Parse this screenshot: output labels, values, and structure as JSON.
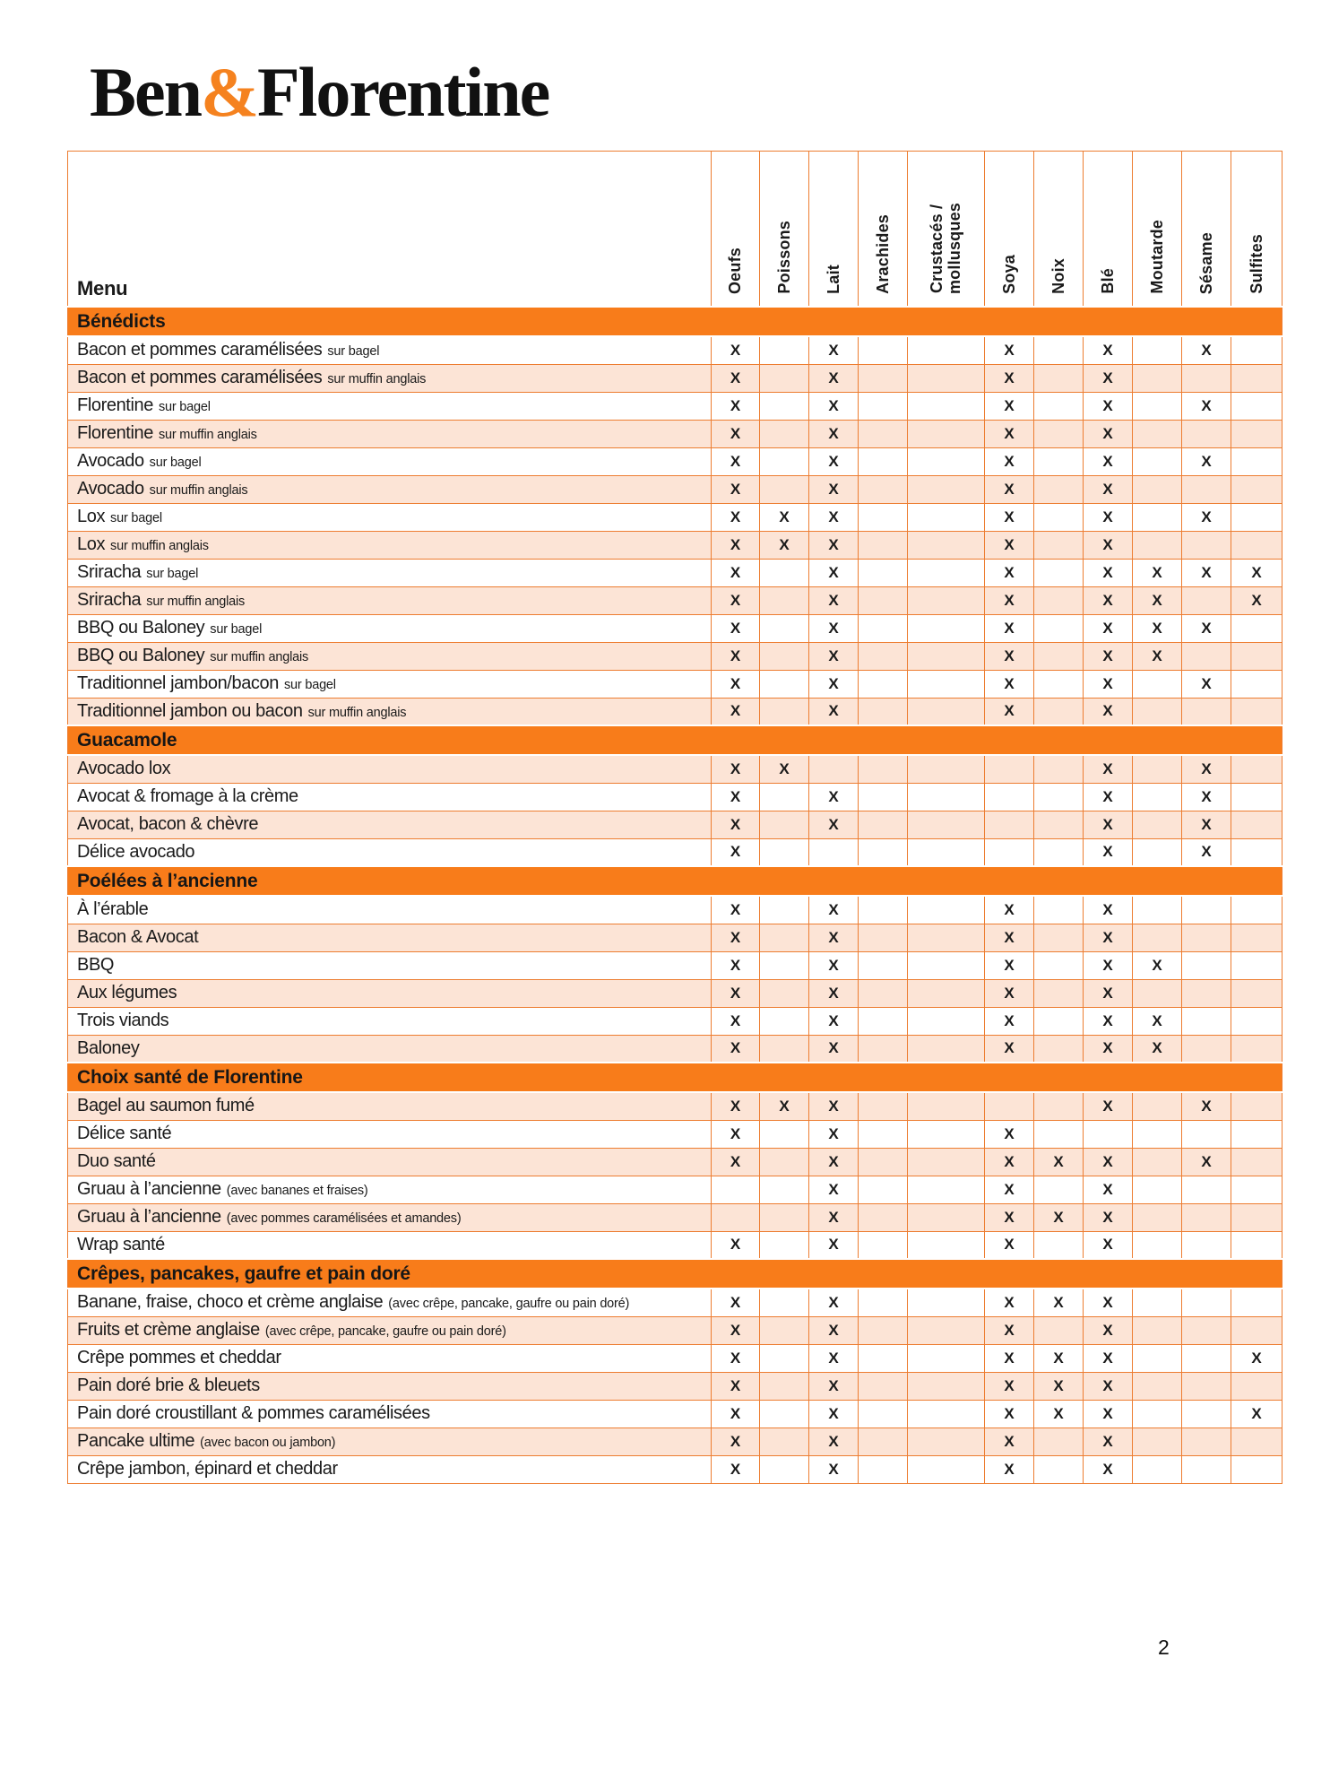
{
  "logo": {
    "part1": "Ben",
    "ampersand": "&",
    "part2": "Florentine"
  },
  "page_number": "2",
  "colors": {
    "section_bar_orange": "#f87c1a",
    "grid_line_orange": "#ed7d31",
    "row_shade_peach": "#fce4d6",
    "logo_ampersand_orange": "#f5821f",
    "text_black": "#1a1a1a"
  },
  "table": {
    "menu_header": "Menu",
    "columns": [
      "Oeufs",
      "Poissons",
      "Lait",
      "Arachides",
      "Crustacés /\nmollusques",
      "Soya",
      "Noix",
      "Blé",
      "Moutarde",
      "Sésame",
      "Sulfites"
    ],
    "mark": "X",
    "sections": [
      {
        "title": "Bénédicts",
        "rows": [
          {
            "name": "Bacon et pommes caramélisées",
            "note": "sur bagel",
            "allergens": [
              "Oeufs",
              "Lait",
              "Soya",
              "Blé",
              "Sésame"
            ]
          },
          {
            "name": "Bacon et pommes caramélisées",
            "note": "sur muffin anglais",
            "allergens": [
              "Oeufs",
              "Lait",
              "Soya",
              "Blé"
            ]
          },
          {
            "name": "Florentine",
            "note": "sur bagel",
            "allergens": [
              "Oeufs",
              "Lait",
              "Soya",
              "Blé",
              "Sésame"
            ]
          },
          {
            "name": "Florentine",
            "note": "sur muffin anglais",
            "allergens": [
              "Oeufs",
              "Lait",
              "Soya",
              "Blé"
            ]
          },
          {
            "name": "Avocado",
            "note": "sur bagel",
            "allergens": [
              "Oeufs",
              "Lait",
              "Soya",
              "Blé",
              "Sésame"
            ]
          },
          {
            "name": "Avocado",
            "note": "sur muffin anglais",
            "allergens": [
              "Oeufs",
              "Lait",
              "Soya",
              "Blé"
            ]
          },
          {
            "name": "Lox",
            "note": "sur bagel",
            "allergens": [
              "Oeufs",
              "Poissons",
              "Lait",
              "Soya",
              "Blé",
              "Sésame"
            ]
          },
          {
            "name": "Lox",
            "note": "sur muffin anglais",
            "allergens": [
              "Oeufs",
              "Poissons",
              "Lait",
              "Soya",
              "Blé"
            ]
          },
          {
            "name": "Sriracha",
            "note": "sur bagel",
            "allergens": [
              "Oeufs",
              "Lait",
              "Soya",
              "Blé",
              "Moutarde",
              "Sésame",
              "Sulfites"
            ]
          },
          {
            "name": "Sriracha",
            "note": "sur muffin anglais",
            "allergens": [
              "Oeufs",
              "Lait",
              "Soya",
              "Blé",
              "Moutarde",
              "Sulfites"
            ]
          },
          {
            "name": "BBQ ou Baloney",
            "note": "sur bagel",
            "allergens": [
              "Oeufs",
              "Lait",
              "Soya",
              "Blé",
              "Moutarde",
              "Sésame"
            ]
          },
          {
            "name": "BBQ ou Baloney",
            "note": "sur muffin anglais",
            "allergens": [
              "Oeufs",
              "Lait",
              "Soya",
              "Blé",
              "Moutarde"
            ]
          },
          {
            "name": "Traditionnel jambon/bacon",
            "note": "sur bagel",
            "allergens": [
              "Oeufs",
              "Lait",
              "Soya",
              "Blé",
              "Sésame"
            ]
          },
          {
            "name": "Traditionnel jambon ou bacon",
            "note": "sur muffin anglais",
            "allergens": [
              "Oeufs",
              "Lait",
              "Soya",
              "Blé"
            ]
          }
        ]
      },
      {
        "title": "Guacamole",
        "rows": [
          {
            "name": "Avocado lox",
            "note": "",
            "allergens": [
              "Oeufs",
              "Poissons",
              "Blé",
              "Sésame"
            ]
          },
          {
            "name": "Avocat & fromage à la crème",
            "note": "",
            "allergens": [
              "Oeufs",
              "Lait",
              "Blé",
              "Sésame"
            ]
          },
          {
            "name": "Avocat, bacon & chèvre",
            "note": "",
            "allergens": [
              "Oeufs",
              "Lait",
              "Blé",
              "Sésame"
            ]
          },
          {
            "name": "Délice avocado",
            "note": "",
            "allergens": [
              "Oeufs",
              "Blé",
              "Sésame"
            ]
          }
        ]
      },
      {
        "title": "Poélées à l’ancienne",
        "rows": [
          {
            "name": "À l’érable",
            "note": "",
            "allergens": [
              "Oeufs",
              "Lait",
              "Soya",
              "Blé"
            ]
          },
          {
            "name": "Bacon & Avocat",
            "note": "",
            "allergens": [
              "Oeufs",
              "Lait",
              "Soya",
              "Blé"
            ]
          },
          {
            "name": "BBQ",
            "note": "",
            "allergens": [
              "Oeufs",
              "Lait",
              "Soya",
              "Blé",
              "Moutarde"
            ]
          },
          {
            "name": "Aux légumes",
            "note": "",
            "allergens": [
              "Oeufs",
              "Lait",
              "Soya",
              "Blé"
            ]
          },
          {
            "name": "Trois viands",
            "note": "",
            "allergens": [
              "Oeufs",
              "Lait",
              "Soya",
              "Blé",
              "Moutarde"
            ]
          },
          {
            "name": "Baloney",
            "note": "",
            "allergens": [
              "Oeufs",
              "Lait",
              "Soya",
              "Blé",
              "Moutarde"
            ]
          }
        ]
      },
      {
        "title": "Choix santé de Florentine",
        "rows": [
          {
            "name": "Bagel au saumon fumé",
            "note": "",
            "allergens": [
              "Oeufs",
              "Poissons",
              "Lait",
              "Blé",
              "Sésame"
            ]
          },
          {
            "name": "Délice santé",
            "note": "",
            "allergens": [
              "Oeufs",
              "Lait",
              "Soya"
            ]
          },
          {
            "name": "Duo santé",
            "note": "",
            "allergens": [
              "Oeufs",
              "Lait",
              "Soya",
              "Noix",
              "Blé",
              "Sésame"
            ]
          },
          {
            "name": "Gruau à l’ancienne",
            "note": "(avec bananes et fraises)",
            "allergens": [
              "Lait",
              "Soya",
              "Blé"
            ]
          },
          {
            "name": "Gruau à l’ancienne",
            "note": "(avec pommes caramélisées et amandes)",
            "allergens": [
              "Lait",
              "Soya",
              "Noix",
              "Blé"
            ]
          },
          {
            "name": "Wrap santé",
            "note": "",
            "allergens": [
              "Oeufs",
              "Lait",
              "Soya",
              "Blé"
            ]
          }
        ]
      },
      {
        "title": "Crêpes, pancakes, gaufre et pain doré",
        "rows": [
          {
            "name": "Banane, fraise, choco et crème anglaise",
            "note": "(avec crêpe, pancake, gaufre ou pain doré)",
            "allergens": [
              "Oeufs",
              "Lait",
              "Soya",
              "Noix",
              "Blé"
            ]
          },
          {
            "name": "Fruits et crème anglaise",
            "note": "(avec crêpe, pancake, gaufre ou pain doré)",
            "allergens": [
              "Oeufs",
              "Lait",
              "Soya",
              "Blé"
            ]
          },
          {
            "name": "Crêpe pommes et cheddar",
            "note": "",
            "allergens": [
              "Oeufs",
              "Lait",
              "Soya",
              "Noix",
              "Blé",
              "Sulfites"
            ]
          },
          {
            "name": "Pain doré brie & bleuets",
            "note": "",
            "allergens": [
              "Oeufs",
              "Lait",
              "Soya",
              "Noix",
              "Blé"
            ]
          },
          {
            "name": "Pain doré croustillant & pommes caramélisées",
            "note": "",
            "allergens": [
              "Oeufs",
              "Lait",
              "Soya",
              "Noix",
              "Blé",
              "Sulfites"
            ]
          },
          {
            "name": "Pancake ultime",
            "note": "(avec bacon ou jambon)",
            "allergens": [
              "Oeufs",
              "Lait",
              "Soya",
              "Blé"
            ]
          },
          {
            "name": "Crêpe jambon, épinard et cheddar",
            "note": "",
            "allergens": [
              "Oeufs",
              "Lait",
              "Soya",
              "Blé"
            ]
          }
        ]
      }
    ]
  }
}
